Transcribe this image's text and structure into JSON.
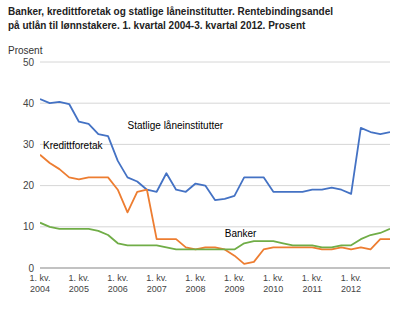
{
  "chart_data": {
    "type": "line",
    "title": "Banker, kredittforetak og statlige låneinstitutter. Rentebindingsandel",
    "subtitle": "på utlån til lønnstakere. 1. kvartal 2004-3. kvartal 2012. Prosent",
    "ylabel": "Prosent",
    "categories": [
      "1. kv.\n2004",
      null,
      null,
      null,
      "1. kv.\n2005",
      null,
      null,
      null,
      "1. kv.\n2006",
      null,
      null,
      null,
      "1. kv.\n2007",
      null,
      null,
      null,
      "1. kv.\n2008",
      null,
      null,
      null,
      "1. kv.\n2009",
      null,
      null,
      null,
      "1. kv.\n2010",
      null,
      null,
      null,
      "1. kv.\n2011",
      null,
      null,
      null,
      "1. kv.\n2012",
      null,
      null,
      null,
      null
    ],
    "series": [
      {
        "name": "Statlige låneinstitutter",
        "color": "#4472c4",
        "values": [
          41,
          40,
          40.3,
          39.8,
          35.5,
          35,
          32.5,
          32,
          26,
          22,
          21,
          19,
          18.5,
          23,
          19,
          18.5,
          20.5,
          20,
          16.5,
          16.8,
          17.5,
          22,
          22,
          22,
          18.5,
          18.5,
          18.5,
          18.5,
          19,
          19,
          19.5,
          19,
          18,
          34,
          33,
          32.5,
          33
        ]
      },
      {
        "name": "Kredittforetak",
        "color": "#ed7d31",
        "values": [
          27.5,
          25.5,
          24,
          22,
          21.5,
          22,
          22,
          22,
          19,
          13.5,
          18.5,
          19,
          7,
          7,
          7,
          5,
          4.5,
          5,
          5,
          4.5,
          3,
          1,
          1.5,
          4.5,
          5,
          5,
          5,
          5,
          5,
          4.5,
          4.5,
          5,
          4.5,
          5,
          4.5,
          7,
          7
        ]
      },
      {
        "name": "Banker",
        "color": "#70ad47",
        "values": [
          11,
          10,
          9.5,
          9.5,
          9.5,
          9.5,
          9,
          8,
          6,
          5.5,
          5.5,
          5.5,
          5.5,
          5,
          4.5,
          4.5,
          4.5,
          4.5,
          4.5,
          4.5,
          4.5,
          6,
          6.5,
          6.5,
          6.5,
          6,
          5.5,
          5.5,
          5.5,
          5,
          5,
          5.5,
          5.5,
          7,
          8,
          8.5,
          9.5
        ]
      }
    ],
    "ylim": [
      0,
      50
    ],
    "yticks": [
      0,
      10,
      20,
      30,
      40,
      50
    ],
    "grid": true
  }
}
